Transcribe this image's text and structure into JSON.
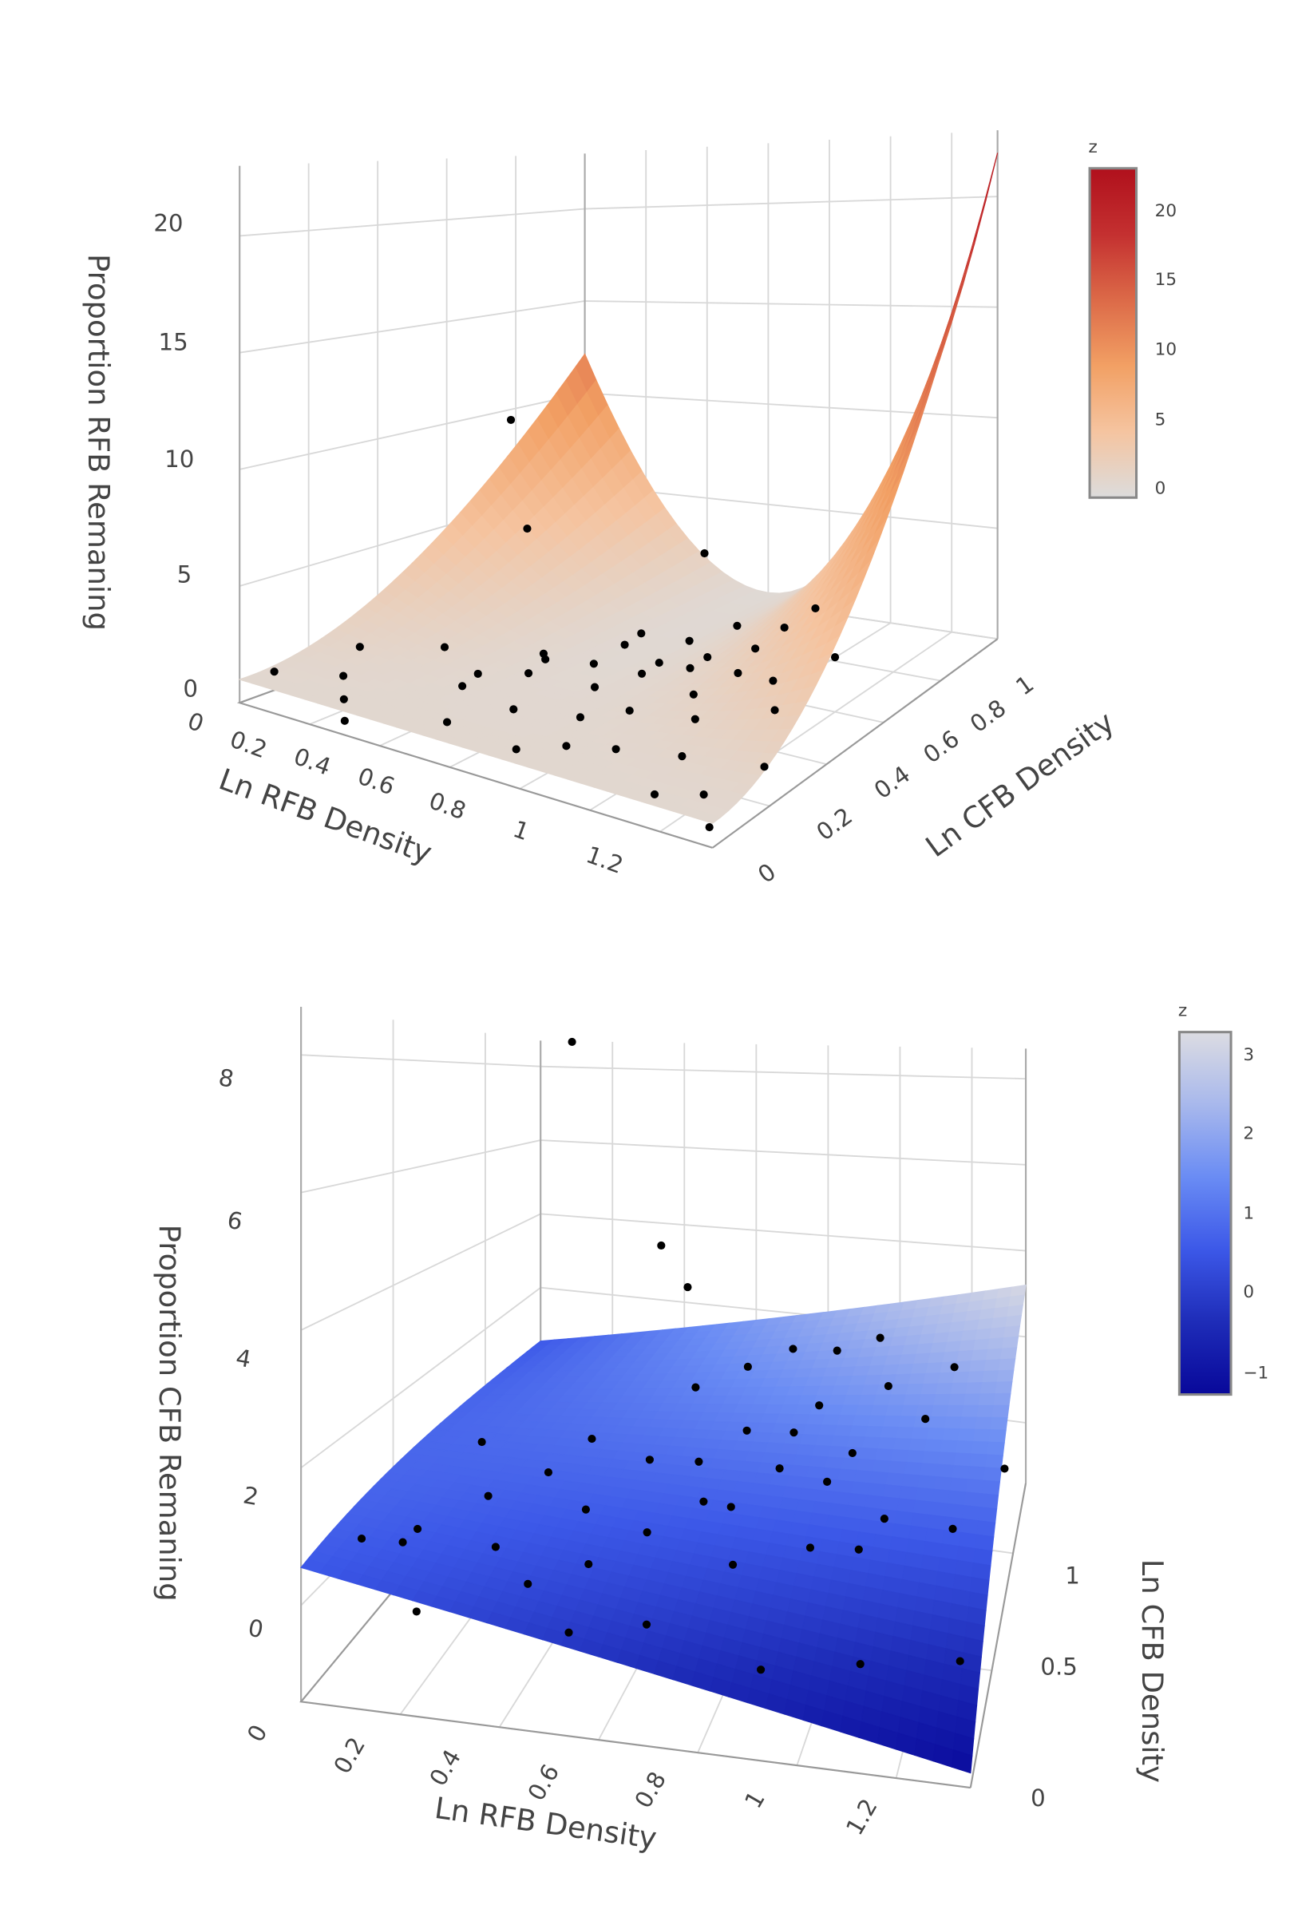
{
  "chart_data": [
    {
      "type": "surface3d",
      "zlabel": "Proportion RFB Remaning",
      "xlabel": "Ln RFB Density",
      "ylabel": "Ln CFB Density",
      "x_ticks": [
        "0",
        "0.2",
        "0.4",
        "0.6",
        "0.8",
        "1",
        "1.2"
      ],
      "y_ticks": [
        "0",
        "0.2",
        "0.4",
        "0.6",
        "0.8",
        "1"
      ],
      "z_ticks": [
        "0",
        "5",
        "10",
        "15",
        "20"
      ],
      "xlim": [
        0,
        1.35
      ],
      "ylim": [
        0,
        1
      ],
      "zlim": [
        0,
        23
      ],
      "colorbar": {
        "title": "z",
        "ticks": [
          "20",
          "15",
          "10",
          "5",
          "0"
        ],
        "range": [
          0,
          23
        ],
        "colors": [
          "#dcdcdc",
          "#f5c4a0",
          "#f2a064",
          "#dc6a48",
          "#c43030",
          "#b0101c"
        ]
      },
      "grid": true,
      "points_color": "#000000",
      "points": [
        [
          0.05,
          0.05,
          1.3
        ],
        [
          0.2,
          0.1,
          1.5
        ],
        [
          0.25,
          0.05,
          1
        ],
        [
          0.3,
          0.0,
          0.6
        ],
        [
          0.35,
          0.25,
          2.5
        ],
        [
          0.4,
          0.3,
          1.2
        ],
        [
          0.45,
          0.2,
          1.5
        ],
        [
          0.5,
          0.1,
          0.8
        ],
        [
          0.55,
          0.3,
          1.8
        ],
        [
          0.6,
          0.2,
          1.1
        ],
        [
          0.65,
          0.4,
          1.9
        ],
        [
          0.7,
          0.1,
          0.5
        ],
        [
          0.7,
          0.35,
          1.4
        ],
        [
          0.75,
          0.25,
          1.0
        ],
        [
          0.8,
          0.45,
          2.1
        ],
        [
          0.8,
          0.15,
          0.7
        ],
        [
          0.85,
          0.3,
          1.3
        ],
        [
          0.9,
          0.5,
          2.3
        ],
        [
          0.9,
          0.2,
          0.6
        ],
        [
          0.95,
          0.4,
          1.6
        ],
        [
          1.0,
          0.35,
          1.1
        ],
        [
          1.0,
          0.55,
          2.6
        ],
        [
          1.05,
          0.25,
          0.5
        ],
        [
          1.1,
          0.5,
          1.9
        ],
        [
          1.1,
          0.1,
          0.3
        ],
        [
          1.15,
          0.45,
          1.2
        ],
        [
          1.2,
          0.6,
          2.4
        ],
        [
          1.25,
          0.3,
          0.4
        ],
        [
          1.3,
          0.05,
          0.2
        ],
        [
          0.25,
          0.55,
          11
        ],
        [
          0.3,
          0.55,
          6
        ],
        [
          0.65,
          0.75,
          4.5
        ],
        [
          0.45,
          0.45,
          1.3
        ],
        [
          0.65,
          0.55,
          2.2
        ],
        [
          0.75,
          0.6,
          1.8
        ],
        [
          0.85,
          0.65,
          2.4
        ],
        [
          0.95,
          0.7,
          2.2
        ],
        [
          1.0,
          0.75,
          2.8
        ],
        [
          0.55,
          0.6,
          1.0
        ],
        [
          0.7,
          0.5,
          0.9
        ],
        [
          0.8,
          0.55,
          1.1
        ],
        [
          0.9,
          0.6,
          0.8
        ],
        [
          1.2,
          0.15,
          0.3
        ],
        [
          0.15,
          0.2,
          2
        ],
        [
          0.6,
          0.3,
          2.6
        ]
      ]
    },
    {
      "type": "surface3d",
      "zlabel": "Proportion CFB Remaning",
      "xlabel": "Ln RFB Density",
      "ylabel": "Ln CFB Density",
      "x_ticks": [
        "0",
        "0.2",
        "0.4",
        "0.6",
        "0.8",
        "1",
        "1.2"
      ],
      "y_ticks": [
        "0",
        "0.5",
        "1"
      ],
      "z_ticks": [
        "0",
        "2",
        "4",
        "6",
        "8"
      ],
      "xlim": [
        0,
        1.35
      ],
      "ylim": [
        0,
        1.3
      ],
      "zlim": [
        -1.4,
        8.7
      ],
      "colorbar": {
        "title": "z",
        "ticks": [
          "3",
          "2",
          "1",
          "0",
          "−1"
        ],
        "range": [
          -1.3,
          3.3
        ],
        "colors": [
          "#08089a",
          "#1e2cb8",
          "#3c58e8",
          "#6a8cf4",
          "#a8b8ec",
          "#dcdce2"
        ]
      },
      "grid": true,
      "points_color": "#000000",
      "points": [
        [
          0.3,
          0.8,
          8.5
        ],
        [
          0.45,
          1.0,
          4.2
        ],
        [
          0.55,
          0.9,
          3.6
        ],
        [
          0.05,
          0.2,
          0.5
        ],
        [
          0.1,
          0.3,
          0.2
        ],
        [
          0.15,
          0.25,
          0.6
        ],
        [
          0.2,
          0.1,
          -0.2
        ],
        [
          0.25,
          0.4,
          0.8
        ],
        [
          0.3,
          0.3,
          0.3
        ],
        [
          0.35,
          0.5,
          1.0
        ],
        [
          0.4,
          0.2,
          0.1
        ],
        [
          0.45,
          0.45,
          0.6
        ],
        [
          0.5,
          0.3,
          0.2
        ],
        [
          0.55,
          0.6,
          1.1
        ],
        [
          0.6,
          0.4,
          0.5
        ],
        [
          0.65,
          0.2,
          -0.3
        ],
        [
          0.7,
          0.5,
          0.8
        ],
        [
          0.75,
          0.7,
          1.5
        ],
        [
          0.8,
          0.35,
          0.3
        ],
        [
          0.85,
          0.6,
          1.2
        ],
        [
          0.9,
          0.8,
          1.8
        ],
        [
          0.95,
          0.45,
          0.4
        ],
        [
          1.0,
          0.7,
          1.3
        ],
        [
          1.05,
          0.9,
          2.0
        ],
        [
          1.1,
          0.55,
          0.7
        ],
        [
          1.15,
          0.85,
          1.6
        ],
        [
          1.2,
          1.0,
          2.2
        ],
        [
          1.25,
          0.6,
          0.5
        ],
        [
          1.3,
          0.3,
          -0.6
        ],
        [
          1.35,
          0.8,
          1.0
        ],
        [
          0.6,
          0.8,
          1.9
        ],
        [
          0.7,
          0.9,
          2.1
        ],
        [
          0.8,
          0.95,
          2.4
        ],
        [
          0.9,
          1.0,
          2.3
        ],
        [
          1.0,
          1.05,
          2.5
        ],
        [
          0.65,
          0.65,
          1.0
        ],
        [
          0.75,
          0.55,
          0.6
        ],
        [
          0.85,
          0.75,
          1.4
        ],
        [
          0.95,
          0.65,
          0.9
        ],
        [
          1.05,
          0.5,
          0.3
        ],
        [
          0.5,
          0.15,
          -0.4
        ],
        [
          0.4,
          0.65,
          1.2
        ],
        [
          0.2,
          0.5,
          1.4
        ],
        [
          1.1,
          0.2,
          -0.5
        ],
        [
          0.9,
          0.15,
          -0.6
        ]
      ]
    }
  ]
}
